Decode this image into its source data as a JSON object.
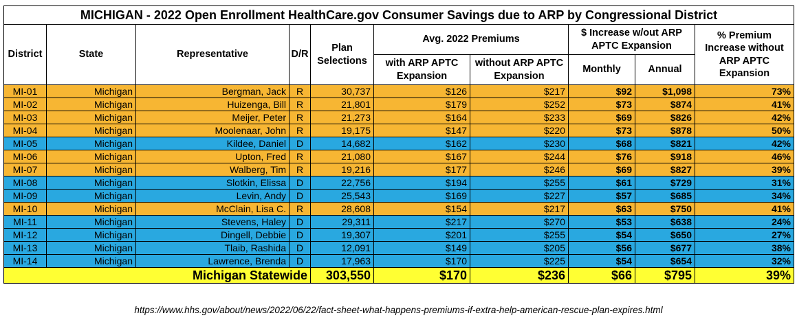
{
  "title": "MICHIGAN - 2022 Open Enrollment HealthCare.gov Consumer Savings due to ARP by Congressional District",
  "headers": {
    "district": "District",
    "state": "State",
    "representative": "Representative",
    "party": "D/R",
    "plan_selections": "Plan Selections",
    "avg_premiums": "Avg. 2022 Premiums",
    "with_arp": "with ARP APTC Expansion",
    "without_arp": "without ARP APTC Expansion",
    "increase_group": "$ Increase w/out ARP APTC Expansion",
    "monthly": "Monthly",
    "annual": "Annual",
    "pct_increase": "% Premium Increase without ARP APTC Expansion"
  },
  "colors": {
    "R": "#f7b633",
    "D": "#29a8e0",
    "total": "#ffff33"
  },
  "rows": [
    {
      "district": "MI-01",
      "state": "Michigan",
      "rep": "Bergman, Jack",
      "party": "R",
      "plans": "30,737",
      "with": "$126",
      "without": "$217",
      "monthly": "$92",
      "annual": "$1,098",
      "pct": "73%"
    },
    {
      "district": "MI-02",
      "state": "Michigan",
      "rep": "Huizenga, Bill",
      "party": "R",
      "plans": "21,801",
      "with": "$179",
      "without": "$252",
      "monthly": "$73",
      "annual": "$874",
      "pct": "41%"
    },
    {
      "district": "MI-03",
      "state": "Michigan",
      "rep": "Meijer, Peter",
      "party": "R",
      "plans": "21,273",
      "with": "$164",
      "without": "$233",
      "monthly": "$69",
      "annual": "$826",
      "pct": "42%"
    },
    {
      "district": "MI-04",
      "state": "Michigan",
      "rep": "Moolenaar, John",
      "party": "R",
      "plans": "19,175",
      "with": "$147",
      "without": "$220",
      "monthly": "$73",
      "annual": "$878",
      "pct": "50%"
    },
    {
      "district": "MI-05",
      "state": "Michigan",
      "rep": "Kildee, Daniel",
      "party": "D",
      "plans": "14,682",
      "with": "$162",
      "without": "$230",
      "monthly": "$68",
      "annual": "$821",
      "pct": "42%"
    },
    {
      "district": "MI-06",
      "state": "Michigan",
      "rep": "Upton, Fred",
      "party": "R",
      "plans": "21,080",
      "with": "$167",
      "without": "$244",
      "monthly": "$76",
      "annual": "$918",
      "pct": "46%"
    },
    {
      "district": "MI-07",
      "state": "Michigan",
      "rep": "Walberg, Tim",
      "party": "R",
      "plans": "19,216",
      "with": "$177",
      "without": "$246",
      "monthly": "$69",
      "annual": "$827",
      "pct": "39%"
    },
    {
      "district": "MI-08",
      "state": "Michigan",
      "rep": "Slotkin, Elissa",
      "party": "D",
      "plans": "22,756",
      "with": "$194",
      "without": "$255",
      "monthly": "$61",
      "annual": "$729",
      "pct": "31%"
    },
    {
      "district": "MI-09",
      "state": "Michigan",
      "rep": "Levin, Andy",
      "party": "D",
      "plans": "25,543",
      "with": "$169",
      "without": "$227",
      "monthly": "$57",
      "annual": "$685",
      "pct": "34%"
    },
    {
      "district": "MI-10",
      "state": "Michigan",
      "rep": "McClain, Lisa C.",
      "party": "R",
      "plans": "28,608",
      "with": "$154",
      "without": "$217",
      "monthly": "$63",
      "annual": "$750",
      "pct": "41%"
    },
    {
      "district": "MI-11",
      "state": "Michigan",
      "rep": "Stevens, Haley",
      "party": "D",
      "plans": "29,311",
      "with": "$217",
      "without": "$270",
      "monthly": "$53",
      "annual": "$638",
      "pct": "24%"
    },
    {
      "district": "MI-12",
      "state": "Michigan",
      "rep": "Dingell, Debbie",
      "party": "D",
      "plans": "19,307",
      "with": "$201",
      "without": "$255",
      "monthly": "$54",
      "annual": "$650",
      "pct": "27%"
    },
    {
      "district": "MI-13",
      "state": "Michigan",
      "rep": "Tlaib, Rashida",
      "party": "D",
      "plans": "12,091",
      "with": "$149",
      "without": "$205",
      "monthly": "$56",
      "annual": "$677",
      "pct": "38%"
    },
    {
      "district": "MI-14",
      "state": "Michigan",
      "rep": "Lawrence, Brenda",
      "party": "D",
      "plans": "17,963",
      "with": "$170",
      "without": "$225",
      "monthly": "$54",
      "annual": "$654",
      "pct": "32%"
    }
  ],
  "total": {
    "label": "Michigan Statewide",
    "plans": "303,550",
    "with": "$170",
    "without": "$236",
    "monthly": "$66",
    "annual": "$795",
    "pct": "39%"
  },
  "source": "https://www.hhs.gov/about/news/2022/06/22/fact-sheet-what-happens-premiums-if-extra-help-american-rescue-plan-expires.html"
}
